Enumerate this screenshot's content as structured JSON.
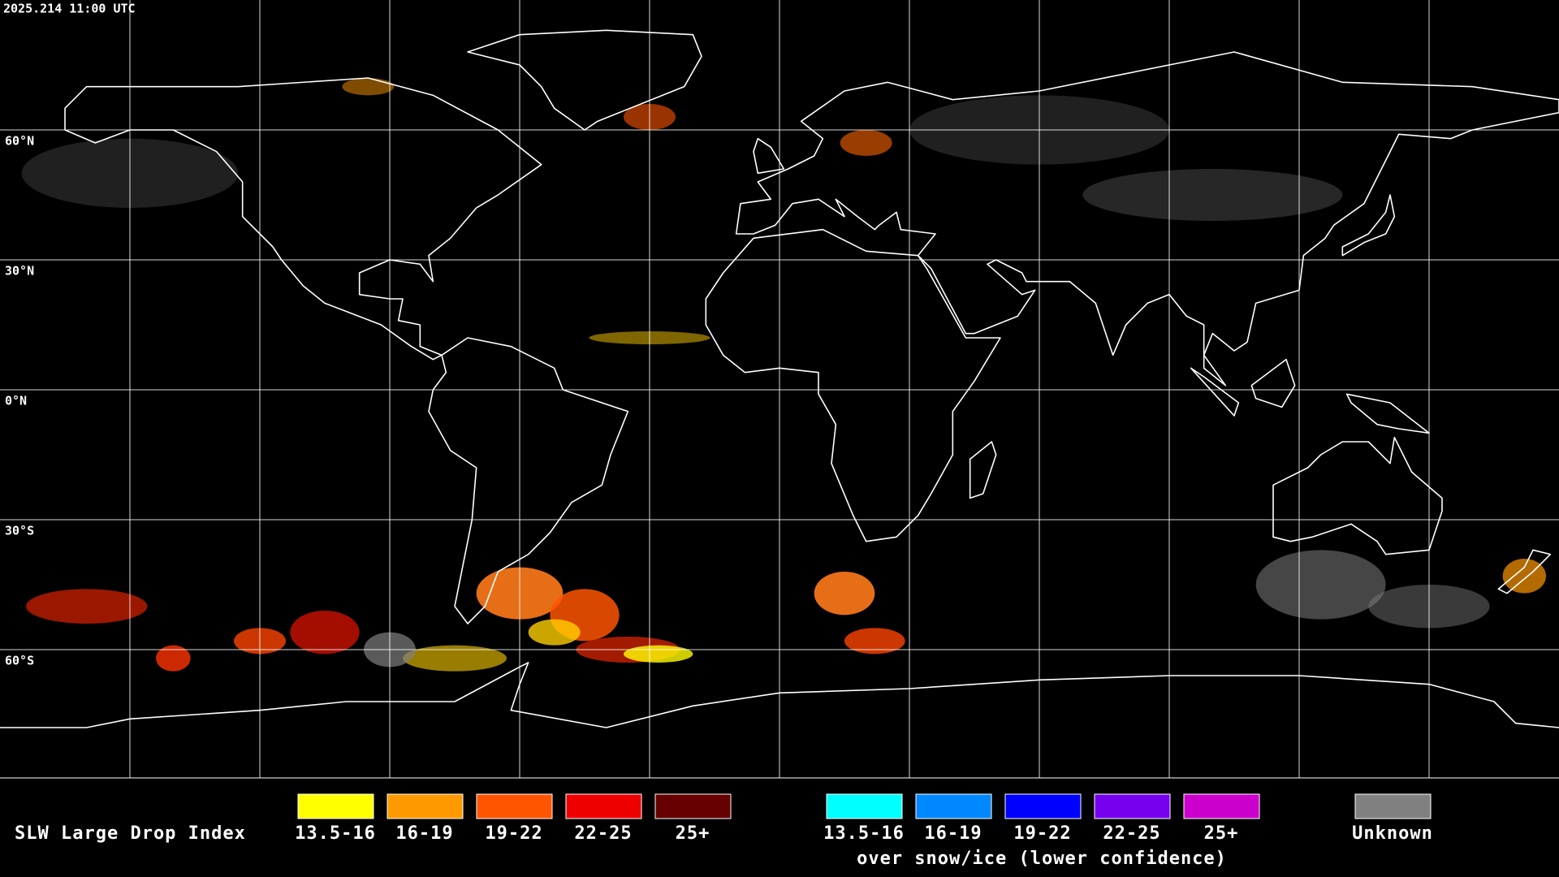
{
  "header": {
    "timestamp": "2025.214 11:00 UTC"
  },
  "map": {
    "latitude_labels": [
      "60°N",
      "30°N",
      "0°N",
      "30°S",
      "60°S"
    ]
  },
  "legend": {
    "title": "SLW Large Drop Index",
    "groups": [
      {
        "items": [
          {
            "label": "13.5-16",
            "color": "#ffff00"
          },
          {
            "label": "16-19",
            "color": "#ff9900"
          },
          {
            "label": "19-22",
            "color": "#ff5500"
          },
          {
            "label": "22-25",
            "color": "#ee0000"
          },
          {
            "label": "25+",
            "color": "#660000"
          }
        ]
      },
      {
        "items": [
          {
            "label": "13.5-16",
            "color": "#00ffff"
          },
          {
            "label": "16-19",
            "color": "#0088ff"
          },
          {
            "label": "19-22",
            "color": "#0000ff"
          },
          {
            "label": "22-25",
            "color": "#7700ee"
          },
          {
            "label": "25+",
            "color": "#cc00cc"
          }
        ],
        "caption": "over snow/ice (lower confidence)"
      },
      {
        "items": [
          {
            "label": "Unknown",
            "color": "#808080"
          }
        ]
      }
    ]
  }
}
